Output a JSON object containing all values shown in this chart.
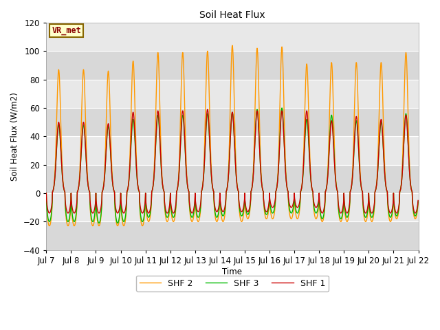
{
  "title": "Soil Heat Flux",
  "ylabel": "Soil Heat Flux (W/m2)",
  "xlabel": "Time",
  "ylim": [
    -40,
    120
  ],
  "yticks": [
    -40,
    -20,
    0,
    20,
    40,
    60,
    80,
    100,
    120
  ],
  "xtick_labels": [
    "Jul 7",
    "Jul 8",
    "Jul 9",
    "Jul 10",
    "Jul 11",
    "Jul 12",
    "Jul 13",
    "Jul 14",
    "Jul 15",
    "Jul 16",
    "Jul 17",
    "Jul 18",
    "Jul 19",
    "Jul 20",
    "Jul 21",
    "Jul 22"
  ],
  "colors": {
    "SHF 1": "#cc0000",
    "SHF 2": "#ff9900",
    "SHF 3": "#00bb00"
  },
  "legend_label": "VR_met",
  "bg_light": "#d8d8d8",
  "bg_dark": "#e8e8e8",
  "linewidth": 1.0,
  "shf1_peaks": [
    50,
    50,
    49,
    57,
    58,
    58,
    59,
    57,
    58,
    58,
    58,
    51,
    54,
    52,
    55
  ],
  "shf2_peaks": [
    87,
    87,
    86,
    93,
    99,
    99,
    100,
    104,
    102,
    103,
    91,
    92,
    92,
    92,
    99
  ],
  "shf3_peaks": [
    48,
    48,
    47,
    52,
    55,
    55,
    56,
    57,
    59,
    60,
    52,
    55,
    51,
    50,
    56
  ],
  "shf1_nights": [
    14,
    14,
    14,
    14,
    14,
    14,
    13,
    13,
    13,
    10,
    10,
    14,
    14,
    14,
    14
  ],
  "shf2_nights": [
    23,
    23,
    23,
    23,
    20,
    20,
    20,
    20,
    18,
    18,
    18,
    20,
    20,
    20,
    18
  ],
  "shf3_nights": [
    20,
    20,
    21,
    20,
    17,
    17,
    17,
    16,
    15,
    14,
    14,
    18,
    17,
    17,
    16
  ]
}
